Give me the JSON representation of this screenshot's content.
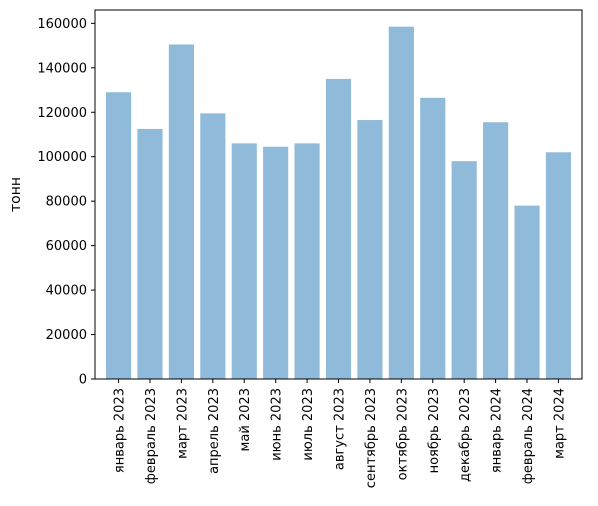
{
  "chart_data": {
    "type": "bar",
    "title": "",
    "xlabel": "",
    "ylabel": "тонн",
    "ylim": [
      0,
      166000
    ],
    "yticks": [
      0,
      20000,
      40000,
      60000,
      80000,
      100000,
      120000,
      140000,
      160000
    ],
    "grid": false,
    "legend": "none",
    "bar_color": "#8fbad9",
    "categories": [
      "январь 2023",
      "февраль 2023",
      "март 2023",
      "апрель 2023",
      "май 2023",
      "июнь 2023",
      "июль 2023",
      "август 2023",
      "сентябрь 2023",
      "октябрь 2023",
      "ноябрь 2023",
      "декабрь 2023",
      "январь 2024",
      "февраль 2024",
      "март 2024"
    ],
    "values": [
      129000,
      112500,
      150500,
      119500,
      106000,
      104500,
      106000,
      135000,
      116500,
      158500,
      126500,
      98000,
      115500,
      78000,
      102000
    ]
  }
}
